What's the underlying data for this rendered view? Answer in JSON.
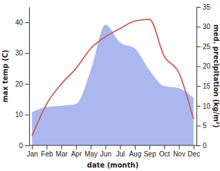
{
  "chart_data": {
    "type": "line",
    "x_label": "date (month)",
    "y_label": "max temp (C)",
    "y2_label": "med. precipitation (kg/m²)",
    "categories": [
      "Jan",
      "Feb",
      "Mar",
      "Apr",
      "May",
      "Jun",
      "Jul",
      "Aug",
      "Sep",
      "Oct",
      "Nov",
      "Dec"
    ],
    "ylim": [
      0,
      45
    ],
    "yticks": [
      0,
      10,
      20,
      30,
      40
    ],
    "y2lim": [
      0,
      35
    ],
    "y2ticks": [
      0,
      5,
      10,
      15,
      20,
      25,
      30,
      35
    ],
    "series": [
      {
        "name": "med. precipitation",
        "type": "area",
        "axis": "y2",
        "color": "#aab8ef",
        "values": [
          8.4,
          9.7,
          10,
          10.5,
          19,
          30.5,
          26,
          24.5,
          19,
          15,
          14.5,
          12
        ]
      },
      {
        "name": "max temp",
        "type": "line",
        "axis": "y",
        "color": "#cd5b5b",
        "values": [
          3,
          13.5,
          20,
          25,
          31.5,
          35.3,
          38,
          40.4,
          41,
          29,
          23.6,
          8.5
        ]
      }
    ]
  }
}
